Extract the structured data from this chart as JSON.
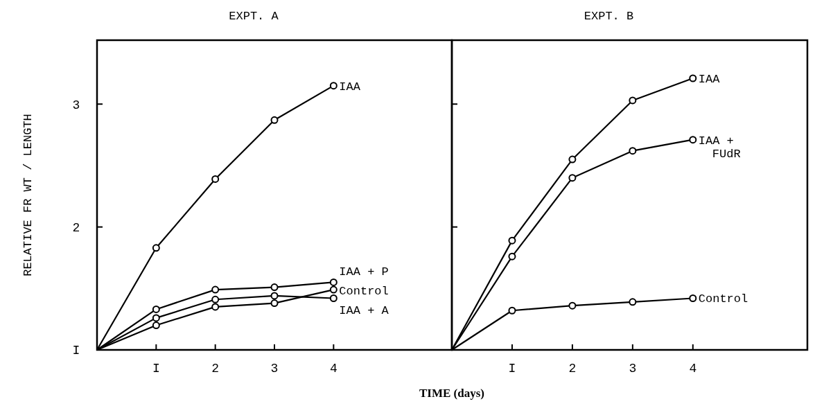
{
  "chart_data": [
    {
      "type": "line",
      "title": "EXPT. A",
      "xlabel": "TIME (days)",
      "ylabel": "RELATIVE FR WT / LENGTH",
      "xlim": [
        0,
        6
      ],
      "ylim": [
        1,
        3.52
      ],
      "xticks": [
        {
          "value": 1,
          "label": "I"
        },
        2,
        3,
        4
      ],
      "yticks": [
        {
          "value": 1,
          "label": "I"
        },
        2,
        3
      ],
      "marker": "circle",
      "x": [
        0,
        1,
        2,
        3,
        4
      ],
      "series": [
        {
          "name": "IAA",
          "color": "#000000",
          "values": [
            1,
            1.83,
            2.39,
            2.87,
            3.15
          ]
        },
        {
          "name": "IAA + P",
          "color": "#000000",
          "values": [
            1,
            1.33,
            1.49,
            1.51,
            1.55
          ]
        },
        {
          "name": "Control",
          "color": "#000000",
          "values": [
            1,
            1.2,
            1.35,
            1.38,
            1.49
          ]
        },
        {
          "name": "IAA + A",
          "color": "#000000",
          "values": [
            1,
            1.26,
            1.41,
            1.44,
            1.42
          ]
        }
      ]
    },
    {
      "type": "line",
      "title": "EXPT. B",
      "xlim": [
        0,
        5.9
      ],
      "ylim": [
        1,
        3.52
      ],
      "xticks": [
        {
          "value": 1,
          "label": "I"
        },
        2,
        3,
        4
      ],
      "yticks": [
        1,
        2,
        3
      ],
      "tick_labels": "x",
      "marker": "circle",
      "x": [
        0,
        1,
        2,
        3,
        4
      ],
      "series": [
        {
          "name": "IAA",
          "color": "#000000",
          "values": [
            1,
            1.89,
            2.55,
            3.03,
            3.21
          ]
        },
        {
          "name": "IAA + FUdR",
          "color": "#000000",
          "values": [
            1,
            1.76,
            2.4,
            2.62,
            2.71
          ]
        },
        {
          "name": "Control",
          "color": "#000000",
          "values": [
            1,
            1.32,
            1.36,
            1.39,
            1.42
          ]
        }
      ]
    }
  ]
}
